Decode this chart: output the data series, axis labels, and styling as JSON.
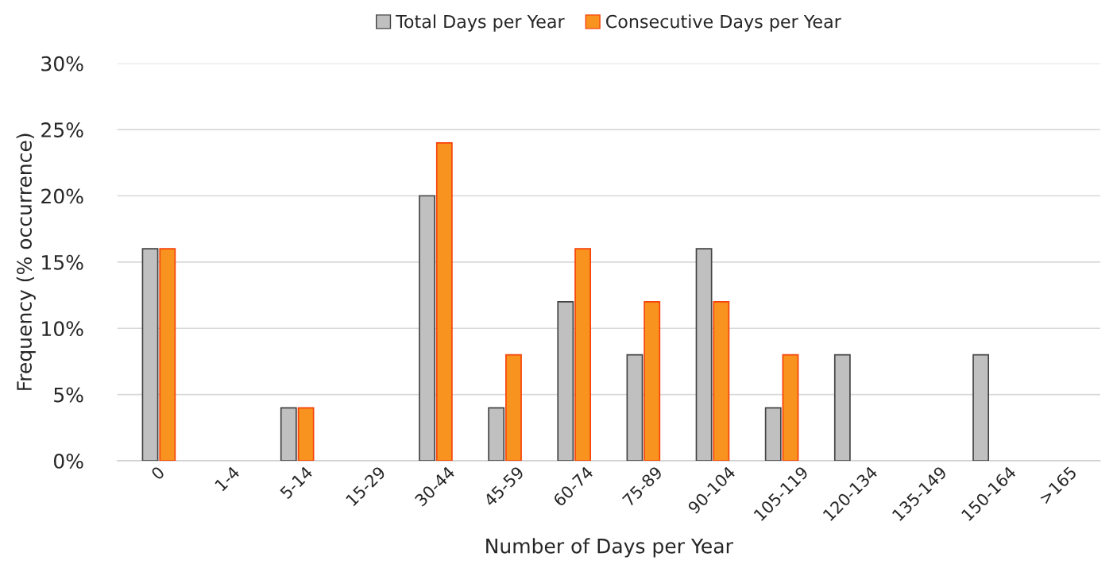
{
  "chart_data": {
    "type": "bar",
    "xlabel": "Number of Days per Year",
    "ylabel": "Frequency (% occurrence)",
    "categories": [
      "0",
      "1-4",
      "5-14",
      "15-29",
      "30-44",
      "45-59",
      "60-74",
      "75-89",
      "90-104",
      "105-119",
      "120-134",
      "135-149",
      "150-164",
      ">165"
    ],
    "series": [
      {
        "name": "Total Days per Year",
        "color": "#c0c0c0",
        "values": [
          16,
          0,
          4,
          0,
          20,
          4,
          12,
          8,
          16,
          4,
          8,
          0,
          8,
          0
        ]
      },
      {
        "name": "Consecutive Days per Year",
        "color": "#f7931e",
        "values": [
          16,
          0,
          4,
          0,
          24,
          8,
          16,
          12,
          12,
          8,
          0,
          0,
          0,
          0
        ]
      }
    ],
    "ylim": [
      0,
      30
    ],
    "yticks": [
      {
        "value": 0,
        "label": "0%"
      },
      {
        "value": 5,
        "label": "5%"
      },
      {
        "value": 10,
        "label": "10%"
      },
      {
        "value": 15,
        "label": "15%"
      },
      {
        "value": 20,
        "label": "20%"
      },
      {
        "value": 25,
        "label": "25%"
      },
      {
        "value": 30,
        "label": "30%"
      }
    ],
    "grid": "y",
    "legend": "top"
  }
}
